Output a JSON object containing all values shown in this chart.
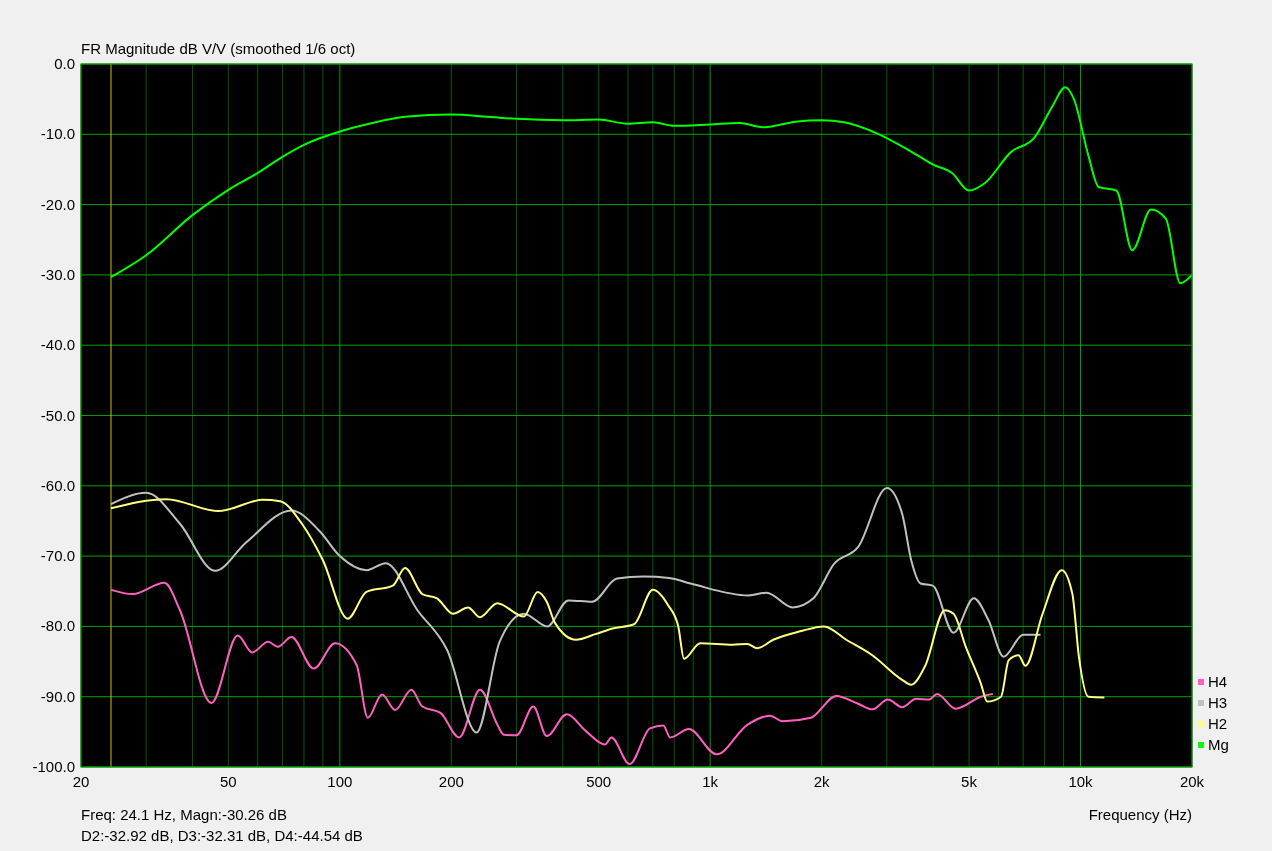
{
  "chart_data": {
    "type": "line",
    "title": "FR Magnitude dB V/V (smoothed 1/6 oct)",
    "xlabel": "Frequency (Hz)",
    "log": "x",
    "grid": true,
    "legend": "bottom right",
    "marker": "none",
    "line_style": "solid",
    "xlim": [
      20,
      20000
    ],
    "ylim": [
      -100,
      0
    ],
    "xticks": [
      20,
      {
        "value": 30,
        "label": null
      },
      {
        "value": 40,
        "label": null
      },
      50,
      {
        "value": 60,
        "label": null
      },
      {
        "value": 70,
        "label": null
      },
      {
        "value": 80,
        "label": null
      },
      {
        "value": 90,
        "label": null
      },
      100,
      200,
      {
        "value": 300,
        "label": null
      },
      {
        "value": 400,
        "label": null
      },
      500,
      {
        "value": 600,
        "label": null
      },
      {
        "value": 700,
        "label": null
      },
      {
        "value": 800,
        "label": null
      },
      {
        "value": 900,
        "label": null
      },
      {
        "value": 1000,
        "label": "1k"
      },
      {
        "value": 2000,
        "label": "2k"
      },
      {
        "value": 3000,
        "label": null
      },
      {
        "value": 4000,
        "label": null
      },
      {
        "value": 5000,
        "label": "5k"
      },
      {
        "value": 6000,
        "label": null
      },
      {
        "value": 7000,
        "label": null
      },
      {
        "value": 8000,
        "label": null
      },
      {
        "value": 9000,
        "label": null
      },
      {
        "value": 10000,
        "label": "10k"
      },
      {
        "value": 20000,
        "label": "20k"
      }
    ],
    "yticks": [
      {
        "value": 0,
        "label": "0.0"
      },
      {
        "value": -10,
        "label": "-10.0"
      },
      {
        "value": -20,
        "label": "-20.0"
      },
      {
        "value": -30,
        "label": "-30.0"
      },
      {
        "value": -40,
        "label": "-40.0"
      },
      {
        "value": -50,
        "label": "-50.0"
      },
      {
        "value": -60,
        "label": "-60.0"
      },
      {
        "value": -70,
        "label": "-70.0"
      },
      {
        "value": -80,
        "label": "-80.0"
      },
      {
        "value": -90,
        "label": "-90.0"
      },
      {
        "value": -100,
        "label": "-100.0"
      }
    ],
    "ref_lines": [
      {
        "axis": "x",
        "value": 24.1,
        "color": "#c8c800"
      }
    ],
    "annotations": [
      "Freq: 24.1 Hz, Magn:-30.26 dB",
      "D2:-32.92 dB, D3:-32.31 dB, D4:-44.54 dB"
    ],
    "series": [
      {
        "name": "H4",
        "color": "#ff60c0",
        "x": [
          24.1,
          27.6,
          33.6,
          37,
          45,
          53,
          58,
          64,
          68,
          74,
          85,
          97,
          111,
          119,
          130,
          141,
          156,
          167,
          187,
          210,
          239,
          267,
          277,
          300,
          333,
          362,
          410,
          462,
          520,
          541,
          606,
          688,
          747,
          780,
          876,
          1040,
          1260,
          1450,
          1570,
          1870,
          2190,
          2510,
          2740,
          3020,
          3300,
          3600,
          3900,
          4100,
          4600,
          5380,
          5800
        ],
        "values": [
          -74.8,
          -75.4,
          -73.8,
          -77.7,
          -90.9,
          -81.3,
          -83.7,
          -82.2,
          -82.9,
          -81.5,
          -86,
          -82.4,
          -85.5,
          -93,
          -89.7,
          -91.9,
          -89,
          -91.4,
          -92.3,
          -95.8,
          -89,
          -94.1,
          -95.4,
          -95.5,
          -91.4,
          -95.6,
          -92.5,
          -94.9,
          -96.8,
          -95.8,
          -99.6,
          -94.5,
          -94.1,
          -95.8,
          -94.6,
          -98.2,
          -94,
          -92.7,
          -93.5,
          -93,
          -89.9,
          -91,
          -91.8,
          -90.4,
          -91.5,
          -90.3,
          -90.4,
          -89.6,
          -91.7,
          -90,
          -89.6
        ]
      },
      {
        "name": "H3",
        "color": "#c0c0c0",
        "x": [
          24.1,
          30,
          37,
          46,
          56,
          74,
          88,
          100,
          118,
          133,
          162,
          195,
          234,
          270,
          314,
          363,
          414,
          480,
          560,
          660,
          775,
          885,
          1270,
          1420,
          1670,
          1900,
          2160,
          2510,
          3000,
          3300,
          3490,
          3700,
          3990,
          4540,
          5150,
          5640,
          6200,
          7000,
          7800
        ],
        "values": [
          -62.6,
          -61,
          -65.4,
          -72.1,
          -68,
          -63.5,
          -66.4,
          -70,
          -72,
          -71,
          -77.7,
          -83.4,
          -95.1,
          -82.2,
          -78.2,
          -80,
          -76.3,
          -76.5,
          -73.2,
          -72.9,
          -73.1,
          -73.9,
          -75.6,
          -75.2,
          -77.3,
          -76,
          -71.1,
          -68.7,
          -60.3,
          -64,
          -70.6,
          -73.9,
          -74.2,
          -80.9,
          -76,
          -79.1,
          -84.3,
          -81.2,
          -81.2
        ]
      },
      {
        "name": "H2",
        "color": "#ffff80",
        "x": [
          24.1,
          34,
          47,
          62,
          69,
          79,
          90,
          105,
          118,
          139,
          150,
          167,
          183,
          202,
          222,
          239,
          266,
          314,
          342,
          362,
          381,
          434,
          490,
          545,
          623,
          700,
          770,
          820,
          850,
          940,
          1150,
          1260,
          1340,
          1480,
          1750,
          2030,
          2330,
          2740,
          3300,
          3490,
          3800,
          4300,
          4540,
          4900,
          5380,
          5600,
          6100,
          6400,
          6800,
          7100,
          7900,
          8900,
          9500,
          9900,
          10500,
          11600
        ],
        "values": [
          -63.2,
          -61.9,
          -63.6,
          -62,
          -62.2,
          -65.4,
          -70.6,
          -78.9,
          -75.1,
          -74.2,
          -71.7,
          -75.4,
          -76,
          -78.2,
          -77.3,
          -78.7,
          -76.7,
          -78.6,
          -75.1,
          -76.5,
          -79.5,
          -81.9,
          -81.1,
          -80.3,
          -79.7,
          -74.8,
          -77,
          -80,
          -84.6,
          -82.4,
          -82.6,
          -82.5,
          -83.1,
          -81.9,
          -80.7,
          -80,
          -81.9,
          -84.1,
          -87.6,
          -88.3,
          -85.7,
          -77.7,
          -78.2,
          -82.9,
          -88.1,
          -90.7,
          -90,
          -84.8,
          -84.1,
          -85.6,
          -78.2,
          -72,
          -75.3,
          -84.3,
          -90,
          -90.1
        ]
      },
      {
        "name": "Mg",
        "color": "#00ff00",
        "x": [
          24.1,
          30,
          40,
          50,
          60,
          70,
          80,
          100,
          120,
          150,
          200,
          250,
          300,
          400,
          500,
          600,
          700,
          800,
          1000,
          1200,
          1400,
          1700,
          2000,
          2300,
          2800,
          3500,
          4000,
          4500,
          5000,
          5500,
          6500,
          7500,
          8400,
          9100,
          9600,
          10500,
          11200,
          12500,
          13800,
          15500,
          17000,
          18600,
          20000
        ],
        "values": [
          -30.3,
          -27.2,
          -21.5,
          -17.9,
          -15.5,
          -13.2,
          -11.5,
          -9.6,
          -8.5,
          -7.5,
          -7.2,
          -7.5,
          -7.8,
          -8,
          -7.9,
          -8.5,
          -8.3,
          -8.8,
          -8.6,
          -8.4,
          -9,
          -8.2,
          -8,
          -8.3,
          -9.8,
          -12.5,
          -14.3,
          -15.5,
          -18,
          -17,
          -12.5,
          -10.5,
          -6,
          -3.3,
          -5,
          -13,
          -17.5,
          -18,
          -26.5,
          -20.7,
          -22,
          -31.2,
          -30
        ]
      }
    ]
  }
}
